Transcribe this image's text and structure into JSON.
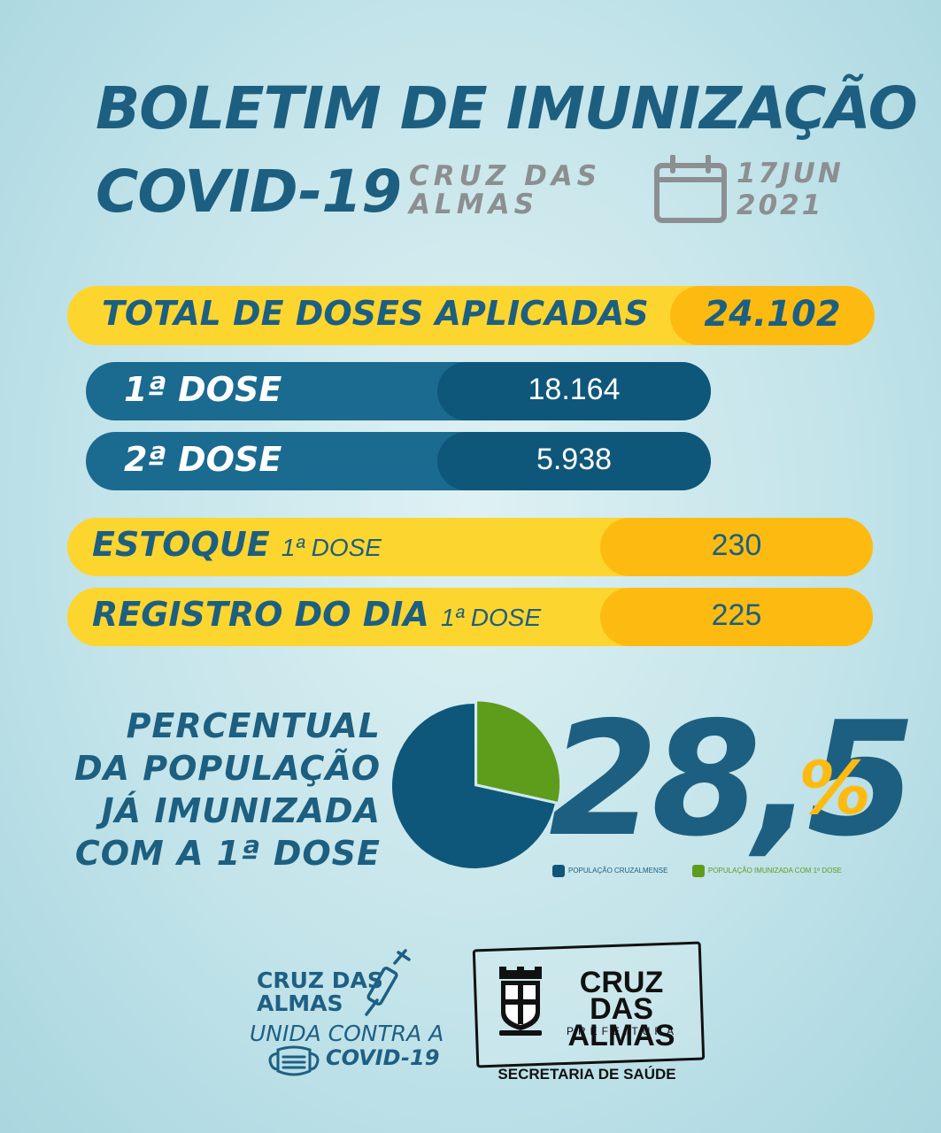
{
  "header": {
    "title": "BOLETIM DE IMUNIZAÇÃO",
    "subtitle": "COVID-19",
    "city": "CRUZ DAS\nALMAS",
    "date": "17JUN\n2021"
  },
  "total": {
    "label": "TOTAL DE DOSES APLICADAS",
    "value": "24.102"
  },
  "doses": [
    {
      "label": "1ª DOSE",
      "value": "18.164"
    },
    {
      "label": "2ª DOSE",
      "value": "5.938"
    }
  ],
  "stock": [
    {
      "label": "ESTOQUE",
      "sub": "1ª DOSE",
      "value": "230"
    },
    {
      "label": "REGISTRO DO DIA",
      "sub": "1ª DOSE",
      "value": "225"
    }
  ],
  "percentual": {
    "text": "PERCENTUAL\nDA POPULAÇÃO\nJÁ IMUNIZADA\nCOM A 1ª DOSE",
    "number": "28,5",
    "symbol": "%"
  },
  "chart_data": {
    "type": "pie",
    "values": [
      71.5,
      28.5
    ],
    "series": [
      {
        "name": "POPULAÇÃO CRUZALMENSE",
        "color": "#0f577a"
      },
      {
        "name": "POPULAÇÃO IMUNIZADA COM 1ª DOSE",
        "color": "#5e9c1c"
      }
    ]
  },
  "footer": {
    "campaign_a": "CRUZ DAS\nALMAS",
    "campaign_b": "UNIDA CONTRA A",
    "campaign_c": "COVID-19",
    "pref_name": "CRUZ\nDAS ALMAS",
    "pref_sub": "PREFEITURA",
    "secretaria": "SECRETARIA DE SAÚDE"
  },
  "colors": {
    "blue": "#1d5f80",
    "yellow": "#fdd52f",
    "orange": "#fdbb12",
    "gray": "#8c8f91"
  }
}
